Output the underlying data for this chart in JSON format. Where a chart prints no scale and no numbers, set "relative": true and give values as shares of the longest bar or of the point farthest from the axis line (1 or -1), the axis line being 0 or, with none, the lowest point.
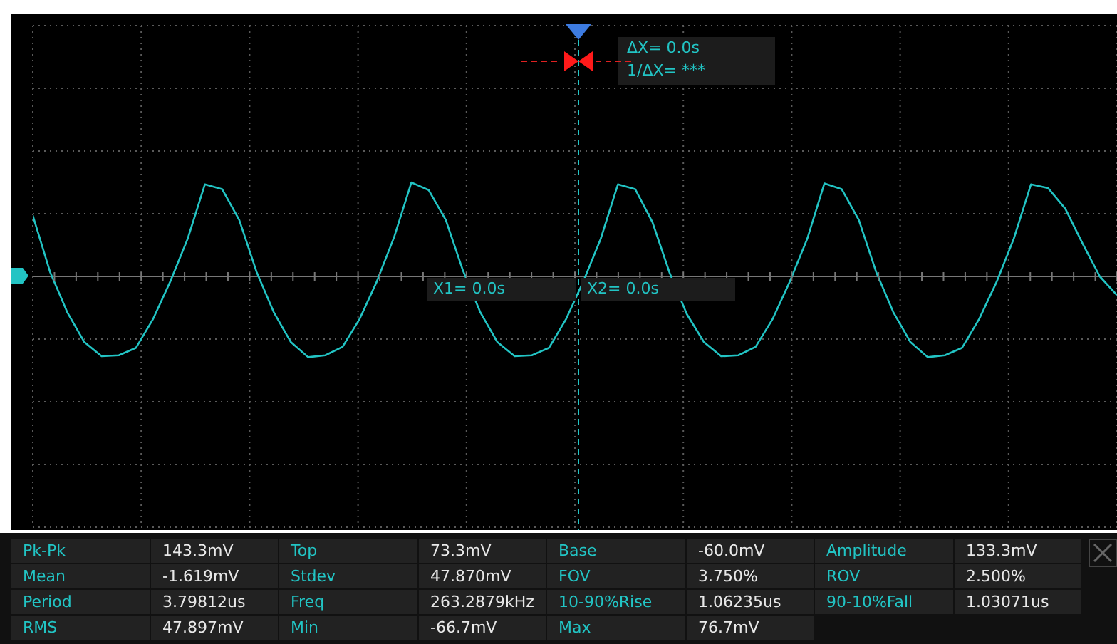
{
  "chart_data": {
    "type": "line",
    "relative": true,
    "grid": true,
    "legend": false,
    "marker": "none",
    "line_style": "solid",
    "categories": [
      null,
      null,
      null,
      null,
      null,
      null,
      null,
      null,
      null,
      null,
      null,
      null,
      null,
      null,
      null,
      null,
      null,
      null,
      null,
      null,
      null,
      null,
      null,
      null,
      null,
      null,
      null,
      null,
      null,
      null,
      null,
      null,
      null,
      null,
      null,
      null,
      null,
      null,
      null,
      null,
      null,
      null,
      null,
      null,
      null,
      null,
      null,
      null,
      null,
      null,
      null,
      null,
      null,
      null,
      null,
      null,
      null,
      null,
      null,
      null,
      null,
      null,
      null,
      null
    ],
    "series": [
      {
        "color": "#22c4c4",
        "values": [
          0.65,
          0.05,
          -0.38,
          -0.7,
          -0.85,
          -0.84,
          -0.76,
          -0.45,
          -0.05,
          0.4,
          0.98,
          0.93,
          0.6,
          0.05,
          -0.38,
          -0.7,
          -0.86,
          -0.84,
          -0.75,
          -0.45,
          -0.05,
          0.42,
          1.0,
          0.92,
          0.6,
          0.06,
          -0.38,
          -0.7,
          -0.85,
          -0.84,
          -0.76,
          -0.45,
          -0.05,
          0.4,
          0.98,
          0.93,
          0.58,
          0.04,
          -0.4,
          -0.7,
          -0.85,
          -0.84,
          -0.75,
          -0.45,
          -0.05,
          0.4,
          0.99,
          0.93,
          0.6,
          0.05,
          -0.38,
          -0.7,
          -0.86,
          -0.84,
          -0.76,
          -0.45,
          -0.06,
          0.4,
          0.98,
          0.94,
          0.72,
          0.35,
          0.0,
          -0.2
        ]
      }
    ],
    "annotations": [
      "ΔX= 0.0s",
      "1/ΔX= ***",
      "X1= 0.0s",
      "X2= 0.0s",
      "Pk-Pk",
      "143.3mV",
      "Top",
      "73.3mV",
      "Base",
      "-60.0mV",
      "Amplitude",
      "133.3mV",
      "Mean",
      "-1.619mV",
      "Stdev",
      "47.870mV",
      "FOV",
      "3.750%",
      "ROV",
      "2.500%",
      "Period",
      "3.79812us",
      "Freq",
      "263.2879kHz",
      "10-90%Rise",
      "1.06235us",
      "90-10%Fall",
      "1.03071us",
      "RMS",
      "47.897mV",
      "Min",
      "-66.7mV",
      "Max",
      "76.7mV"
    ]
  }
}
